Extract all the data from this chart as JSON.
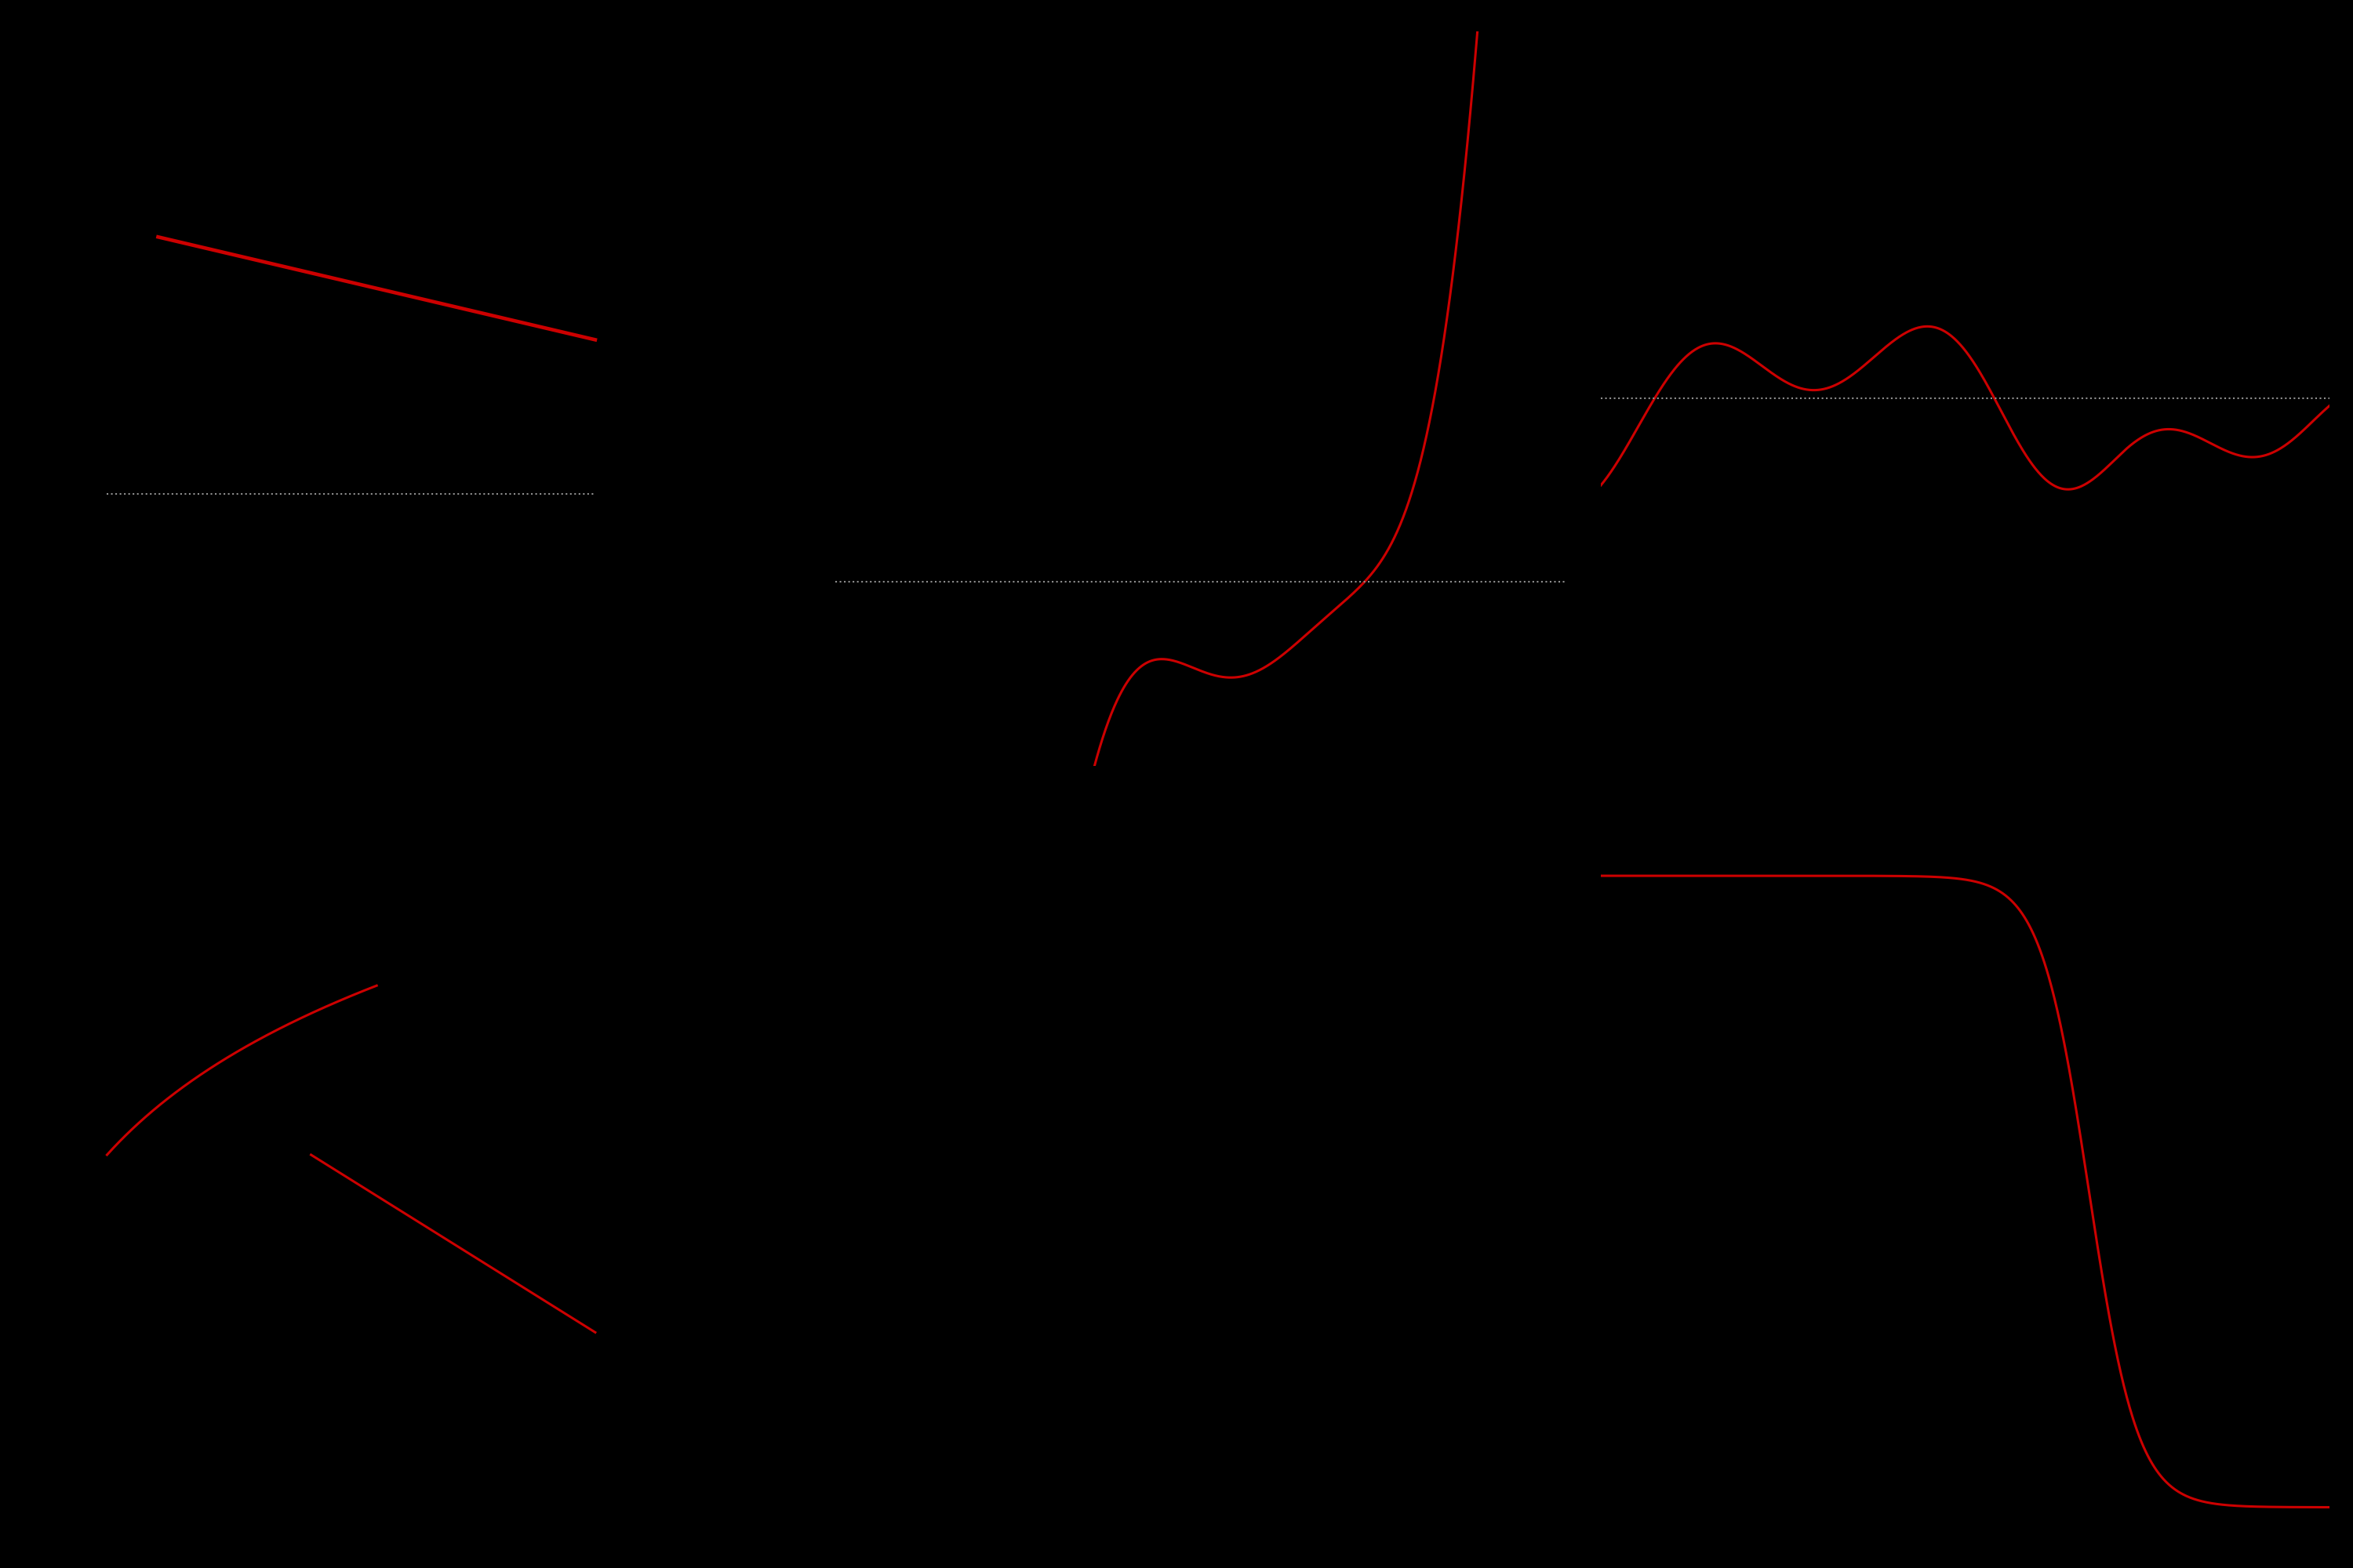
{
  "background_color": "#000000",
  "line_color": "#cc0000",
  "dotted_color": "#909090",
  "fig_width": 30,
  "fig_height": 20,
  "subplot_bg": "#000000",
  "lw": 2.2
}
